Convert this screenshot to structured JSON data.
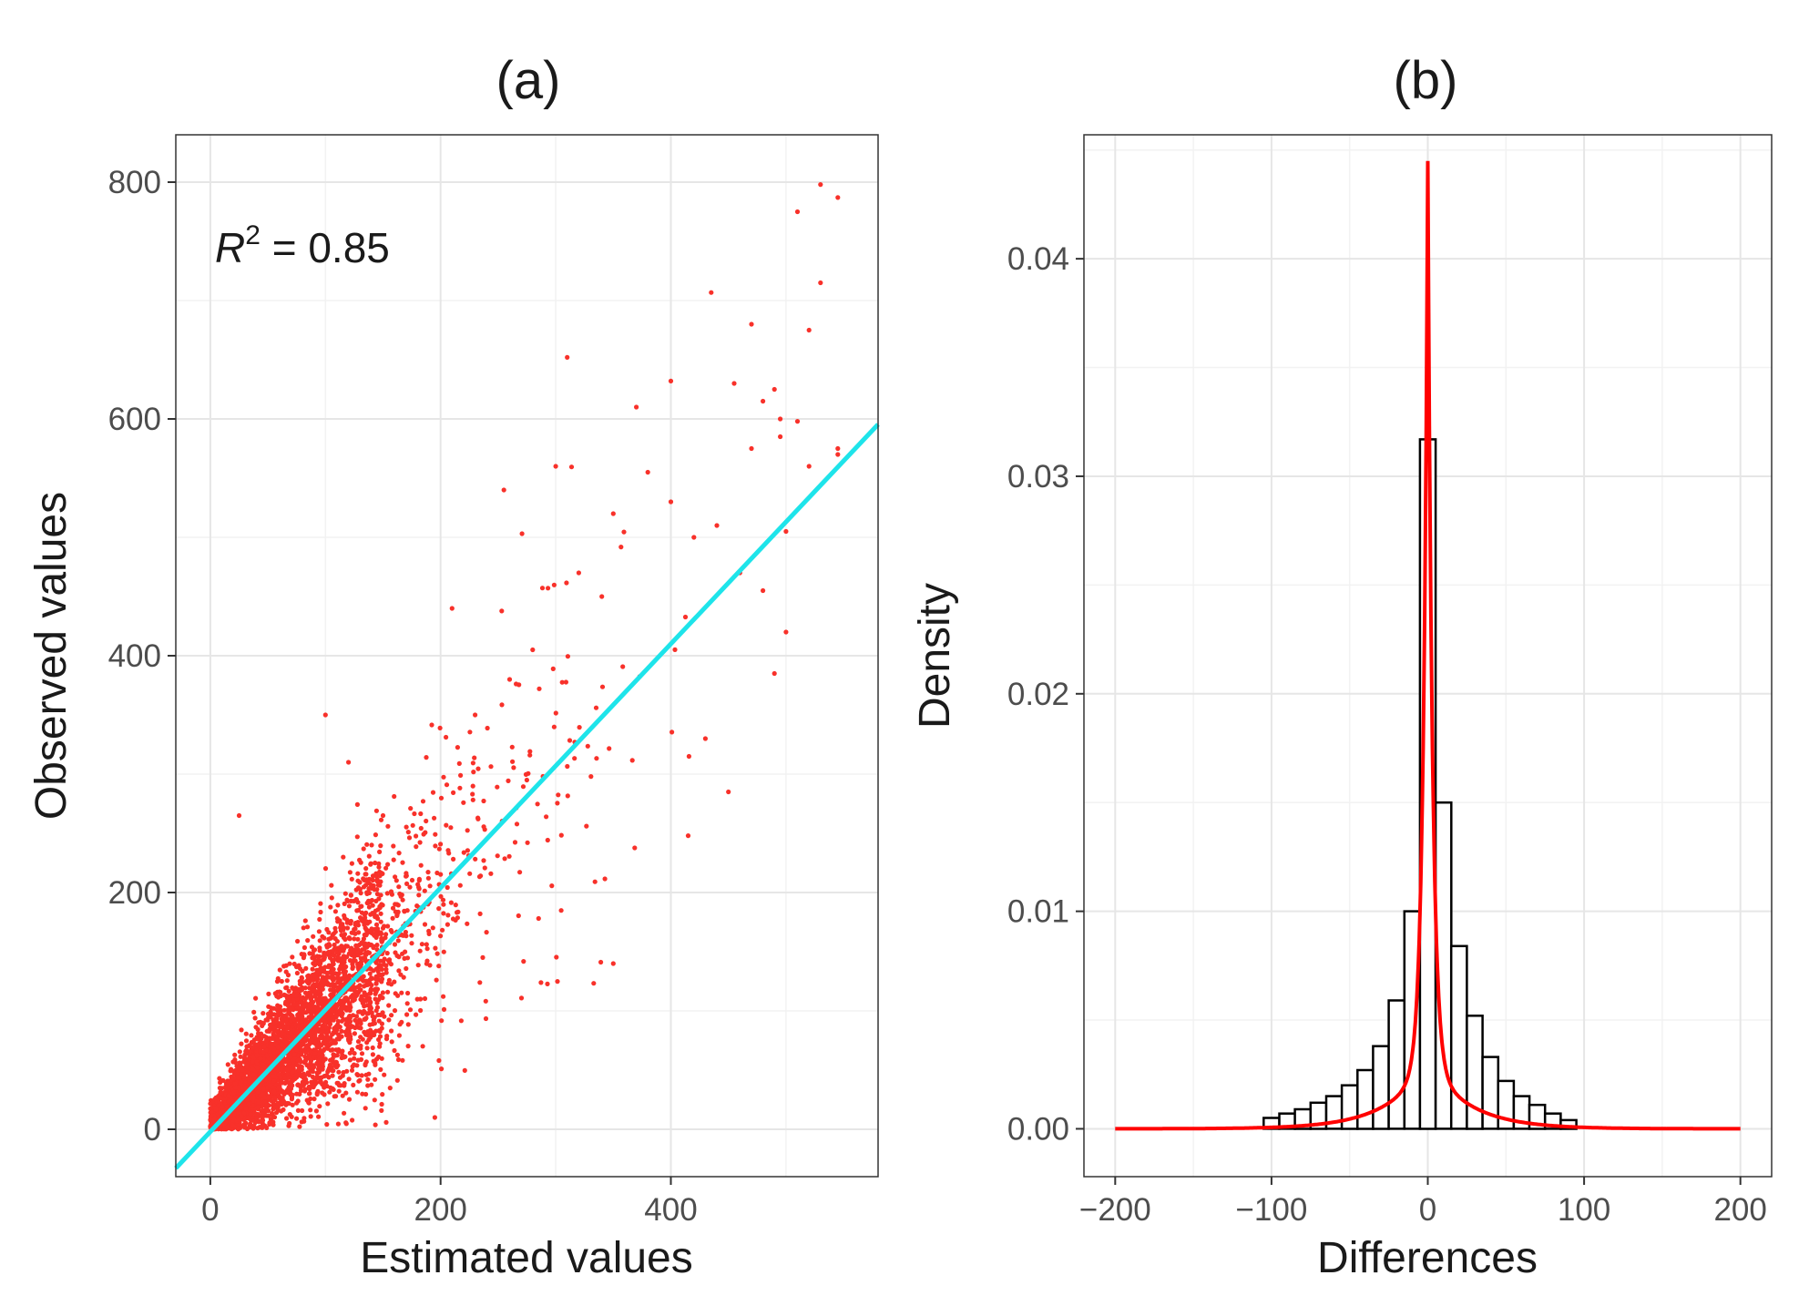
{
  "chart_data": [
    {
      "type": "scatter",
      "title": "(a)",
      "xlabel": "Estimated values",
      "ylabel": "Observed values",
      "xlim": [
        -30,
        580
      ],
      "ylim": [
        -40,
        840
      ],
      "xticks": [
        0,
        200,
        400
      ],
      "yticks": [
        0,
        200,
        400,
        600,
        800
      ],
      "grid": true,
      "annotation": {
        "symbol": "R",
        "superscript": "2",
        "text": " = 0.85",
        "value": 0.85
      },
      "point_color": "#f8312a",
      "fit_line": {
        "color": "#1ee4ea",
        "intercept": -2,
        "slope": 1.03,
        "x_range": [
          -30,
          580
        ]
      },
      "outliers": [
        [
          530,
          798
        ],
        [
          545,
          787
        ],
        [
          510,
          775
        ],
        [
          530,
          715
        ],
        [
          470,
          680
        ],
        [
          520,
          675
        ],
        [
          455,
          630
        ],
        [
          400,
          632
        ],
        [
          310,
          652
        ],
        [
          490,
          625
        ],
        [
          480,
          615
        ],
        [
          370,
          610
        ],
        [
          495,
          600
        ],
        [
          510,
          598
        ],
        [
          495,
          585
        ],
        [
          470,
          575
        ],
        [
          545,
          575
        ],
        [
          300,
          560
        ],
        [
          255,
          540
        ],
        [
          350,
          520
        ],
        [
          420,
          500
        ],
        [
          380,
          555
        ],
        [
          500,
          505
        ],
        [
          490,
          385
        ],
        [
          500,
          420
        ],
        [
          210,
          440
        ],
        [
          400,
          530
        ],
        [
          440,
          510
        ],
        [
          230,
          350
        ],
        [
          150,
          265
        ],
        [
          25,
          265
        ],
        [
          100,
          350
        ],
        [
          120,
          310
        ],
        [
          350,
          140
        ],
        [
          195,
          10
        ],
        [
          450,
          285
        ],
        [
          430,
          330
        ],
        [
          460,
          470
        ],
        [
          480,
          455
        ],
        [
          520,
          560
        ],
        [
          280,
          405
        ],
        [
          260,
          380
        ],
        [
          320,
          470
        ],
        [
          340,
          450
        ],
        [
          545,
          570
        ],
        [
          415,
          248
        ]
      ]
    },
    {
      "type": "histogram",
      "title": "(b)",
      "xlabel": "Differences",
      "ylabel": "Density",
      "xlim": [
        -220,
        220
      ],
      "ylim": [
        -0.0022,
        0.0457
      ],
      "xticks": [
        -200,
        -100,
        0,
        100,
        200
      ],
      "xtick_labels": [
        "−200",
        "−100",
        "0",
        "100",
        "200"
      ],
      "yticks": [
        0.0,
        0.01,
        0.02,
        0.03,
        0.04
      ],
      "ytick_labels": [
        "0.00",
        "0.01",
        "0.02",
        "0.03",
        "0.04"
      ],
      "grid": true,
      "bin_width": 10,
      "bins": [
        {
          "x": -100,
          "y": 0.0005
        },
        {
          "x": -90,
          "y": 0.0007
        },
        {
          "x": -80,
          "y": 0.0009
        },
        {
          "x": -70,
          "y": 0.0012
        },
        {
          "x": -60,
          "y": 0.0015
        },
        {
          "x": -50,
          "y": 0.002
        },
        {
          "x": -40,
          "y": 0.0027
        },
        {
          "x": -30,
          "y": 0.0038
        },
        {
          "x": -20,
          "y": 0.0059
        },
        {
          "x": -10,
          "y": 0.01
        },
        {
          "x": 0,
          "y": 0.0317
        },
        {
          "x": 10,
          "y": 0.015
        },
        {
          "x": 20,
          "y": 0.0084
        },
        {
          "x": 30,
          "y": 0.0052
        },
        {
          "x": 40,
          "y": 0.0033
        },
        {
          "x": 50,
          "y": 0.0022
        },
        {
          "x": 60,
          "y": 0.0015
        },
        {
          "x": 70,
          "y": 0.0011
        },
        {
          "x": 80,
          "y": 0.0007
        },
        {
          "x": 90,
          "y": 0.0004
        }
      ],
      "density_curve": {
        "color": "#ff0000",
        "x_range": [
          -200,
          200
        ],
        "peak": 0.0445,
        "peak_x": 0
      }
    }
  ]
}
